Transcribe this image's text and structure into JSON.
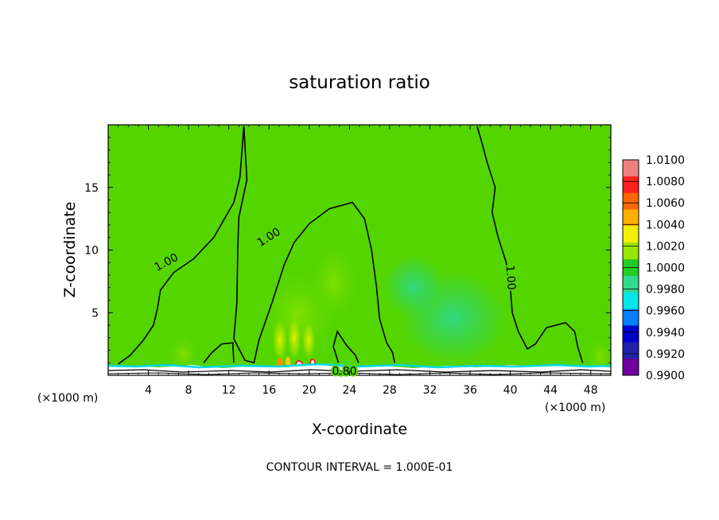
{
  "chart_data": {
    "type": "heatmap",
    "title": "saturation ratio",
    "xlabel": "X-coordinate",
    "ylabel": "Z-coordinate",
    "x_unit": "(×1000 m)",
    "x_unit_right": "(×1000 m)",
    "xlim": [
      0,
      50
    ],
    "ylim": [
      0,
      20
    ],
    "x_ticks": [
      4,
      8,
      12,
      16,
      20,
      24,
      28,
      32,
      36,
      40,
      44,
      48
    ],
    "y_ticks": [
      5,
      10,
      15
    ],
    "footer": "CONTOUR INTERVAL = 1.000E-01",
    "colorbar": {
      "levels": [
        "1.0100",
        "1.0080",
        "1.0060",
        "1.0040",
        "1.0020",
        "1.0000",
        "0.9980",
        "0.9960",
        "0.9940",
        "0.9920",
        "0.9900"
      ],
      "colors": [
        "#f08080",
        "#ff2020",
        "#ff6600",
        "#ffb000",
        "#f0f000",
        "#99e600",
        "#22cc22",
        "#33d98c",
        "#00e6e6",
        "#0080ff",
        "#0000cc",
        "#2222aa",
        "#7000a0"
      ]
    },
    "contour_labels": [
      {
        "text": "1.00",
        "x": 5.8,
        "z": 9.0,
        "rotate": -28
      },
      {
        "text": "1.00",
        "x": 16.0,
        "z": 11.0,
        "rotate": -32
      },
      {
        "text": "1.00",
        "x": 40.0,
        "z": 7.8,
        "rotate": 86
      },
      {
        "text": "0.80",
        "x": 23.5,
        "z": 0.3,
        "rotate": 0
      }
    ],
    "contours": [
      {
        "level": "1.00",
        "points": [
          [
            1,
            0.9
          ],
          [
            2.2,
            1.6
          ],
          [
            3.5,
            2.8
          ],
          [
            4.5,
            4.0
          ],
          [
            4.9,
            5.3
          ],
          [
            5.2,
            6.8
          ],
          [
            6.5,
            8.2
          ],
          [
            8.5,
            9.3
          ],
          [
            10.5,
            11.0
          ],
          [
            12.5,
            13.8
          ],
          [
            13.1,
            15.8
          ],
          [
            13.3,
            17.8
          ],
          [
            13.5,
            19.9
          ]
        ]
      },
      {
        "level": "1.00",
        "points": [
          [
            13.5,
            19.9
          ],
          [
            13.7,
            17.0
          ],
          [
            13.8,
            15.6
          ],
          [
            13.5,
            14.5
          ],
          [
            13.0,
            12.6
          ],
          [
            12.9,
            10.5
          ],
          [
            12.8,
            5.8
          ],
          [
            12.5,
            2.9
          ],
          [
            13.6,
            1.2
          ],
          [
            14.5,
            1.0
          ],
          [
            15.0,
            2.8
          ],
          [
            16.3,
            5.8
          ],
          [
            17.5,
            8.8
          ],
          [
            18.5,
            10.6
          ],
          [
            20.0,
            12.1
          ],
          [
            22.0,
            13.3
          ],
          [
            24.3,
            13.8
          ],
          [
            25.5,
            12.5
          ],
          [
            26.2,
            10.0
          ],
          [
            26.7,
            7.0
          ],
          [
            27.0,
            4.5
          ],
          [
            27.7,
            2.6
          ],
          [
            28.3,
            1.8
          ],
          [
            28.5,
            1.0
          ]
        ]
      },
      {
        "level": "1.00",
        "points": [
          [
            36.7,
            19.9
          ],
          [
            37.2,
            18.5
          ],
          [
            37.7,
            17.0
          ],
          [
            38.5,
            15.0
          ],
          [
            38.2,
            13.0
          ],
          [
            38.8,
            11.0
          ],
          [
            39.6,
            9.0
          ],
          [
            40.0,
            7.0
          ],
          [
            40.2,
            5.0
          ],
          [
            40.8,
            3.5
          ],
          [
            41.7,
            2.1
          ],
          [
            42.5,
            2.5
          ],
          [
            43.6,
            3.8
          ],
          [
            45.5,
            4.2
          ],
          [
            46.4,
            3.5
          ],
          [
            46.7,
            2.3
          ],
          [
            47.2,
            1.0
          ]
        ]
      },
      {
        "level": "1.00",
        "points": [
          [
            9.5,
            1.0
          ],
          [
            10.3,
            1.8
          ],
          [
            11.3,
            2.5
          ],
          [
            12.4,
            2.6
          ],
          [
            12.5,
            1.0
          ]
        ]
      },
      {
        "level": "1.00",
        "points": [
          [
            22.9,
            1.0
          ],
          [
            22.4,
            2.3
          ],
          [
            22.8,
            3.5
          ],
          [
            23.7,
            2.4
          ],
          [
            24.6,
            1.6
          ],
          [
            24.9,
            1.0
          ]
        ]
      }
    ]
  }
}
